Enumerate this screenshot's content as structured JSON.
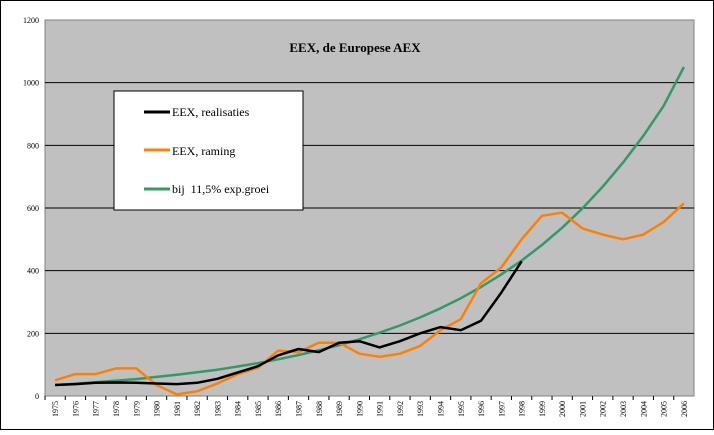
{
  "chart_data": {
    "type": "line",
    "title": "EEX,  de Europese AEX",
    "xlabel": "",
    "ylabel": "",
    "ylim": [
      0,
      1200
    ],
    "yticks": [
      "0",
      "200",
      "400",
      "600",
      "800",
      "1000",
      "1200"
    ],
    "categories": [
      "1975",
      "1976",
      "1977",
      "1978",
      "1979",
      "1980",
      "1981",
      "1982",
      "1983",
      "1984",
      "1985",
      "1986",
      "1987",
      "1988",
      "1989",
      "1990",
      "1991",
      "1992",
      "1993",
      "1994",
      "1995",
      "1996",
      "1997",
      "1998",
      "1999",
      "2000",
      "2001",
      "2002",
      "2003",
      "2004",
      "2005",
      "2006"
    ],
    "grid": "horizontal",
    "legend_position": "upper-left",
    "plot_background": "#c0c0c0",
    "series": [
      {
        "name": "EEX, realisaties",
        "color": "#000000",
        "values": [
          35,
          38,
          42,
          43,
          42,
          40,
          38,
          42,
          55,
          75,
          95,
          130,
          150,
          140,
          170,
          175,
          155,
          175,
          200,
          220,
          210,
          240,
          330,
          430,
          null,
          null,
          null,
          null,
          null,
          null,
          null,
          null
        ]
      },
      {
        "name": "EEX, raming",
        "color": "#ff8000",
        "values": [
          50,
          70,
          70,
          88,
          88,
          35,
          5,
          15,
          40,
          70,
          90,
          145,
          140,
          170,
          170,
          135,
          125,
          135,
          160,
          210,
          245,
          360,
          410,
          500,
          575,
          585,
          535,
          515,
          500,
          515,
          555,
          615
        ]
      },
      {
        "name": "bij  11,5% exp.groei",
        "color": "#339966",
        "values": [
          35,
          39,
          44,
          49,
          54,
          61,
          68,
          76,
          84,
          94,
          105,
          117,
          131,
          146,
          162,
          181,
          202,
          225,
          251,
          280,
          312,
          348,
          388,
          432,
          482,
          537,
          599,
          668,
          745,
          830,
          926,
          1050
        ]
      }
    ]
  }
}
